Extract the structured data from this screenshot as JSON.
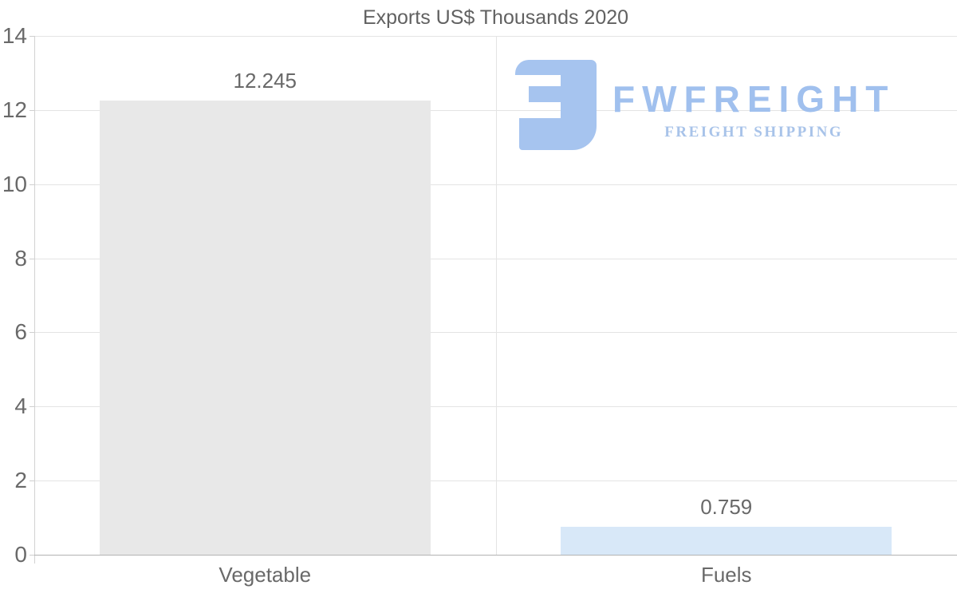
{
  "chart_data": {
    "type": "bar",
    "title": "Exports US$ Thousands 2020",
    "categories": [
      "Vegetable",
      "Fuels"
    ],
    "values": [
      12.245,
      0.759
    ],
    "value_labels": [
      "12.245",
      "0.759"
    ],
    "bar_colors": [
      "#e8e8e8",
      "#d8e8f8"
    ],
    "xlabel": "",
    "ylabel": "",
    "ylim": [
      0,
      14
    ],
    "yticks": [
      0,
      2,
      4,
      6,
      8,
      10,
      12,
      14
    ],
    "grid": true,
    "legend": "none"
  },
  "logo": {
    "wordmark": "FWFREIGHT",
    "tagline": "FREIGHT SHIPPING",
    "icon": "fwfreight-logo-icon",
    "icon_color": "#a6c4ef",
    "wordmark_color": "#a0c0ee",
    "tagline_color": "#a8c3e9"
  },
  "colors": {
    "title_text": "#616161",
    "axis_text": "#696969",
    "gridline": "#e4e4e4",
    "baseline": "#b3b3b3"
  }
}
